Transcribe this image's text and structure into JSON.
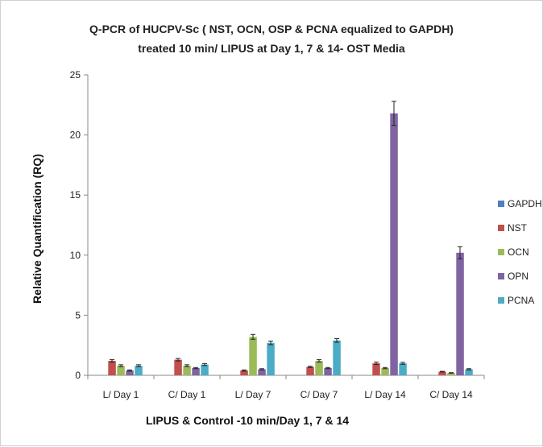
{
  "chart_data": {
    "type": "bar",
    "title": "Q-PCR of HUCPV-Sc ( NST, OCN, OSP & PCNA equalized to GAPDH)",
    "subtitle": "treated 10 min/ LIPUS at Day 1, 7 & 14- OST Media",
    "xlabel": "LIPUS  & Control -10 min/Day 1, 7 & 14",
    "ylabel": "Relative Quantification (RQ)",
    "ylim": [
      0,
      25
    ],
    "yticks": [
      "0",
      "5",
      "10",
      "15",
      "20",
      "25"
    ],
    "grid": false,
    "legend_position": "right",
    "categories": [
      "L/ Day 1",
      "C/ Day 1",
      "L/ Day 7",
      "C/ Day 7",
      "L/ Day 14",
      "C/ Day 14"
    ],
    "series": [
      {
        "name": "GAPDH",
        "color": "#4f81bd",
        "values": [
          0,
          0,
          0,
          0,
          0,
          0
        ],
        "errors": [
          0,
          0,
          0,
          0,
          0,
          0
        ]
      },
      {
        "name": "NST",
        "color": "#c0504d",
        "values": [
          1.2,
          1.3,
          0.4,
          0.7,
          1.0,
          0.3
        ],
        "errors": [
          0.1,
          0.1,
          0.05,
          0.05,
          0.1,
          0.03
        ]
      },
      {
        "name": "OCN",
        "color": "#9bbb59",
        "values": [
          0.8,
          0.8,
          3.2,
          1.2,
          0.6,
          0.2
        ],
        "errors": [
          0.08,
          0.08,
          0.2,
          0.1,
          0.05,
          0.02
        ]
      },
      {
        "name": "OPN",
        "color": "#8064a2",
        "values": [
          0.4,
          0.6,
          0.5,
          0.6,
          21.8,
          10.2
        ],
        "errors": [
          0.05,
          0.05,
          0.05,
          0.05,
          1.0,
          0.5
        ]
      },
      {
        "name": "PCNA",
        "color": "#4bacc6",
        "values": [
          0.8,
          0.9,
          2.7,
          2.9,
          1.0,
          0.5
        ],
        "errors": [
          0.08,
          0.08,
          0.15,
          0.15,
          0.08,
          0.05
        ]
      }
    ]
  }
}
